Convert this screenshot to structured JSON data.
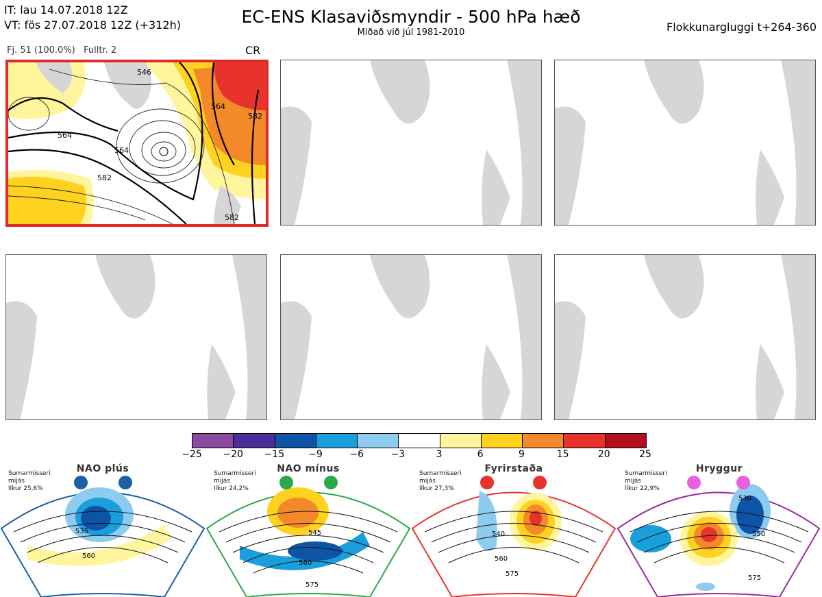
{
  "header": {
    "it_line": "IT: lau 14.07.2018 12Z",
    "vt_line": "VT: fös 27.07.2018 12Z  (+312h)",
    "title": "EC-ENS Klasaviðsmyndir - 500 hPa hæð",
    "subtitle": "Miðað við júl 1981-2010",
    "window": "Flokkunargluggi t+264-360"
  },
  "panel1": {
    "members": "Fj. 51 (100.0%)",
    "representative": "Fulltr. 2",
    "regime_code": "CR",
    "contour_labels": [
      "564",
      "564",
      "564",
      "582",
      "564",
      "582",
      "582",
      "546"
    ]
  },
  "colorscale": {
    "colors": [
      "#8b4aa0",
      "#4b2d9a",
      "#0e54a6",
      "#1a9fdc",
      "#8ecbf0",
      "#ffffff",
      "#fff59d",
      "#ffd21f",
      "#f4892a",
      "#e8322c",
      "#b2101e"
    ],
    "ticks": [
      "−25",
      "−20",
      "−15",
      "−9",
      "−6",
      "−3",
      "3",
      "6",
      "9",
      "15",
      "20",
      "25"
    ]
  },
  "regimes": [
    {
      "name": "NAO plús",
      "season": "Sumarmisseri",
      "season2": "mijás",
      "likelihood": "líkur 25,6%",
      "color": "#1a5fa8",
      "labels": [
        "535",
        "560"
      ]
    },
    {
      "name": "NAO mínus",
      "season": "Sumarmisseri",
      "season2": "mijás",
      "likelihood": "líkur 24,2%",
      "color": "#2aa84a",
      "labels": [
        "545",
        "560",
        "575"
      ]
    },
    {
      "name": "Fyrirstaða",
      "season": "Sumarmisseri",
      "season2": "mijás",
      "likelihood": "líkur 27,3%",
      "color": "#e8322c",
      "labels": [
        "540",
        "560",
        "575"
      ]
    },
    {
      "name": "Hryggur",
      "season": "Sumarmisseri",
      "season2": "mijás",
      "likelihood": "líkur 22,9%",
      "color": "#9a2aa0",
      "labels": [
        "530",
        "550",
        "575"
      ]
    }
  ]
}
